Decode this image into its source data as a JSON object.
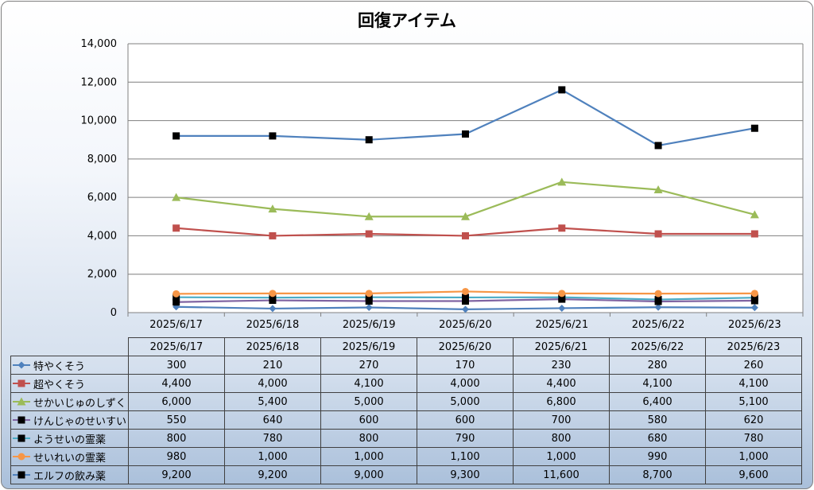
{
  "chart_data": {
    "type": "line",
    "title": "回復アイテム",
    "categories": [
      "2025/6/17",
      "2025/6/18",
      "2025/6/19",
      "2025/6/20",
      "2025/6/21",
      "2025/6/22",
      "2025/6/23"
    ],
    "ylim": [
      0,
      14000
    ],
    "yticks": [
      "0",
      "2,000",
      "4,000",
      "6,000",
      "8,000",
      "10,000",
      "12,000",
      "14,000"
    ],
    "grid": true,
    "legend": "data table",
    "series": [
      {
        "name": "特やくそう",
        "color": "#4f81bd",
        "marker": "diamond",
        "values": [
          300,
          210,
          270,
          170,
          230,
          280,
          260
        ],
        "labels": [
          "300",
          "210",
          "270",
          "170",
          "230",
          "280",
          "260"
        ]
      },
      {
        "name": "超やくそう",
        "color": "#c0504d",
        "marker": "square",
        "values": [
          4400,
          4000,
          4100,
          4000,
          4400,
          4100,
          4100
        ],
        "labels": [
          "4,400",
          "4,000",
          "4,100",
          "4,000",
          "4,400",
          "4,100",
          "4,100"
        ]
      },
      {
        "name": "せかいじゅのしずく",
        "color": "#9bbb59",
        "marker": "triangle",
        "values": [
          6000,
          5400,
          5000,
          5000,
          6800,
          6400,
          5100
        ],
        "labels": [
          "6,000",
          "5,400",
          "5,000",
          "5,000",
          "6,800",
          "6,400",
          "5,100"
        ]
      },
      {
        "name": "けんじゃのせいすい",
        "color": "#8064a2",
        "marker": "black-square",
        "values": [
          550,
          640,
          600,
          600,
          700,
          580,
          620
        ],
        "labels": [
          "550",
          "640",
          "600",
          "600",
          "700",
          "580",
          "620"
        ]
      },
      {
        "name": "ようせいの霊薬",
        "color": "#4bacc6",
        "marker": "black-square",
        "values": [
          800,
          780,
          800,
          790,
          800,
          680,
          780
        ],
        "labels": [
          "800",
          "780",
          "800",
          "790",
          "800",
          "680",
          "780"
        ]
      },
      {
        "name": "せいれいの霊薬",
        "color": "#f79646",
        "marker": "circle",
        "values": [
          980,
          1000,
          1000,
          1100,
          1000,
          990,
          1000
        ],
        "labels": [
          "980",
          "1,000",
          "1,000",
          "1,100",
          "1,000",
          "990",
          "1,000"
        ]
      },
      {
        "name": "エルフの飲み薬",
        "color": "#4f81bd",
        "marker": "black-square",
        "values": [
          9200,
          9200,
          9000,
          9300,
          11600,
          8700,
          9600
        ],
        "labels": [
          "9,200",
          "9,200",
          "9,000",
          "9,300",
          "11,600",
          "8,700",
          "9,600"
        ]
      }
    ]
  }
}
